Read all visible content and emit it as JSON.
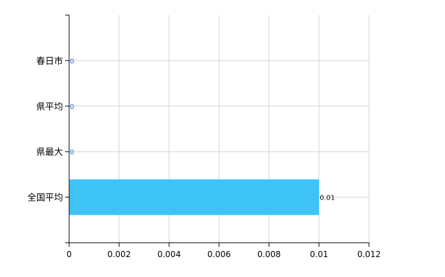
{
  "chart_data": {
    "type": "bar",
    "orientation": "horizontal",
    "categories": [
      "春日市",
      "県平均",
      "県最大",
      "全国平均"
    ],
    "values": [
      0,
      0,
      0,
      0.01
    ],
    "data_labels": [
      "0",
      "0",
      "0",
      "0.01"
    ],
    "xlim": [
      0,
      0.012
    ],
    "xticks": [
      0,
      0.002,
      0.004,
      0.006,
      0.008,
      0.01,
      0.012
    ],
    "xtick_labels": [
      "0",
      "0.002",
      "0.004",
      "0.006",
      "0.008",
      "0.01",
      "0.012"
    ],
    "grid": true,
    "colors": {
      "bar": "#3ec3f7",
      "grid": "#d3d3d3",
      "axis": "#000000",
      "zero_label": "#1e6fd0"
    }
  }
}
